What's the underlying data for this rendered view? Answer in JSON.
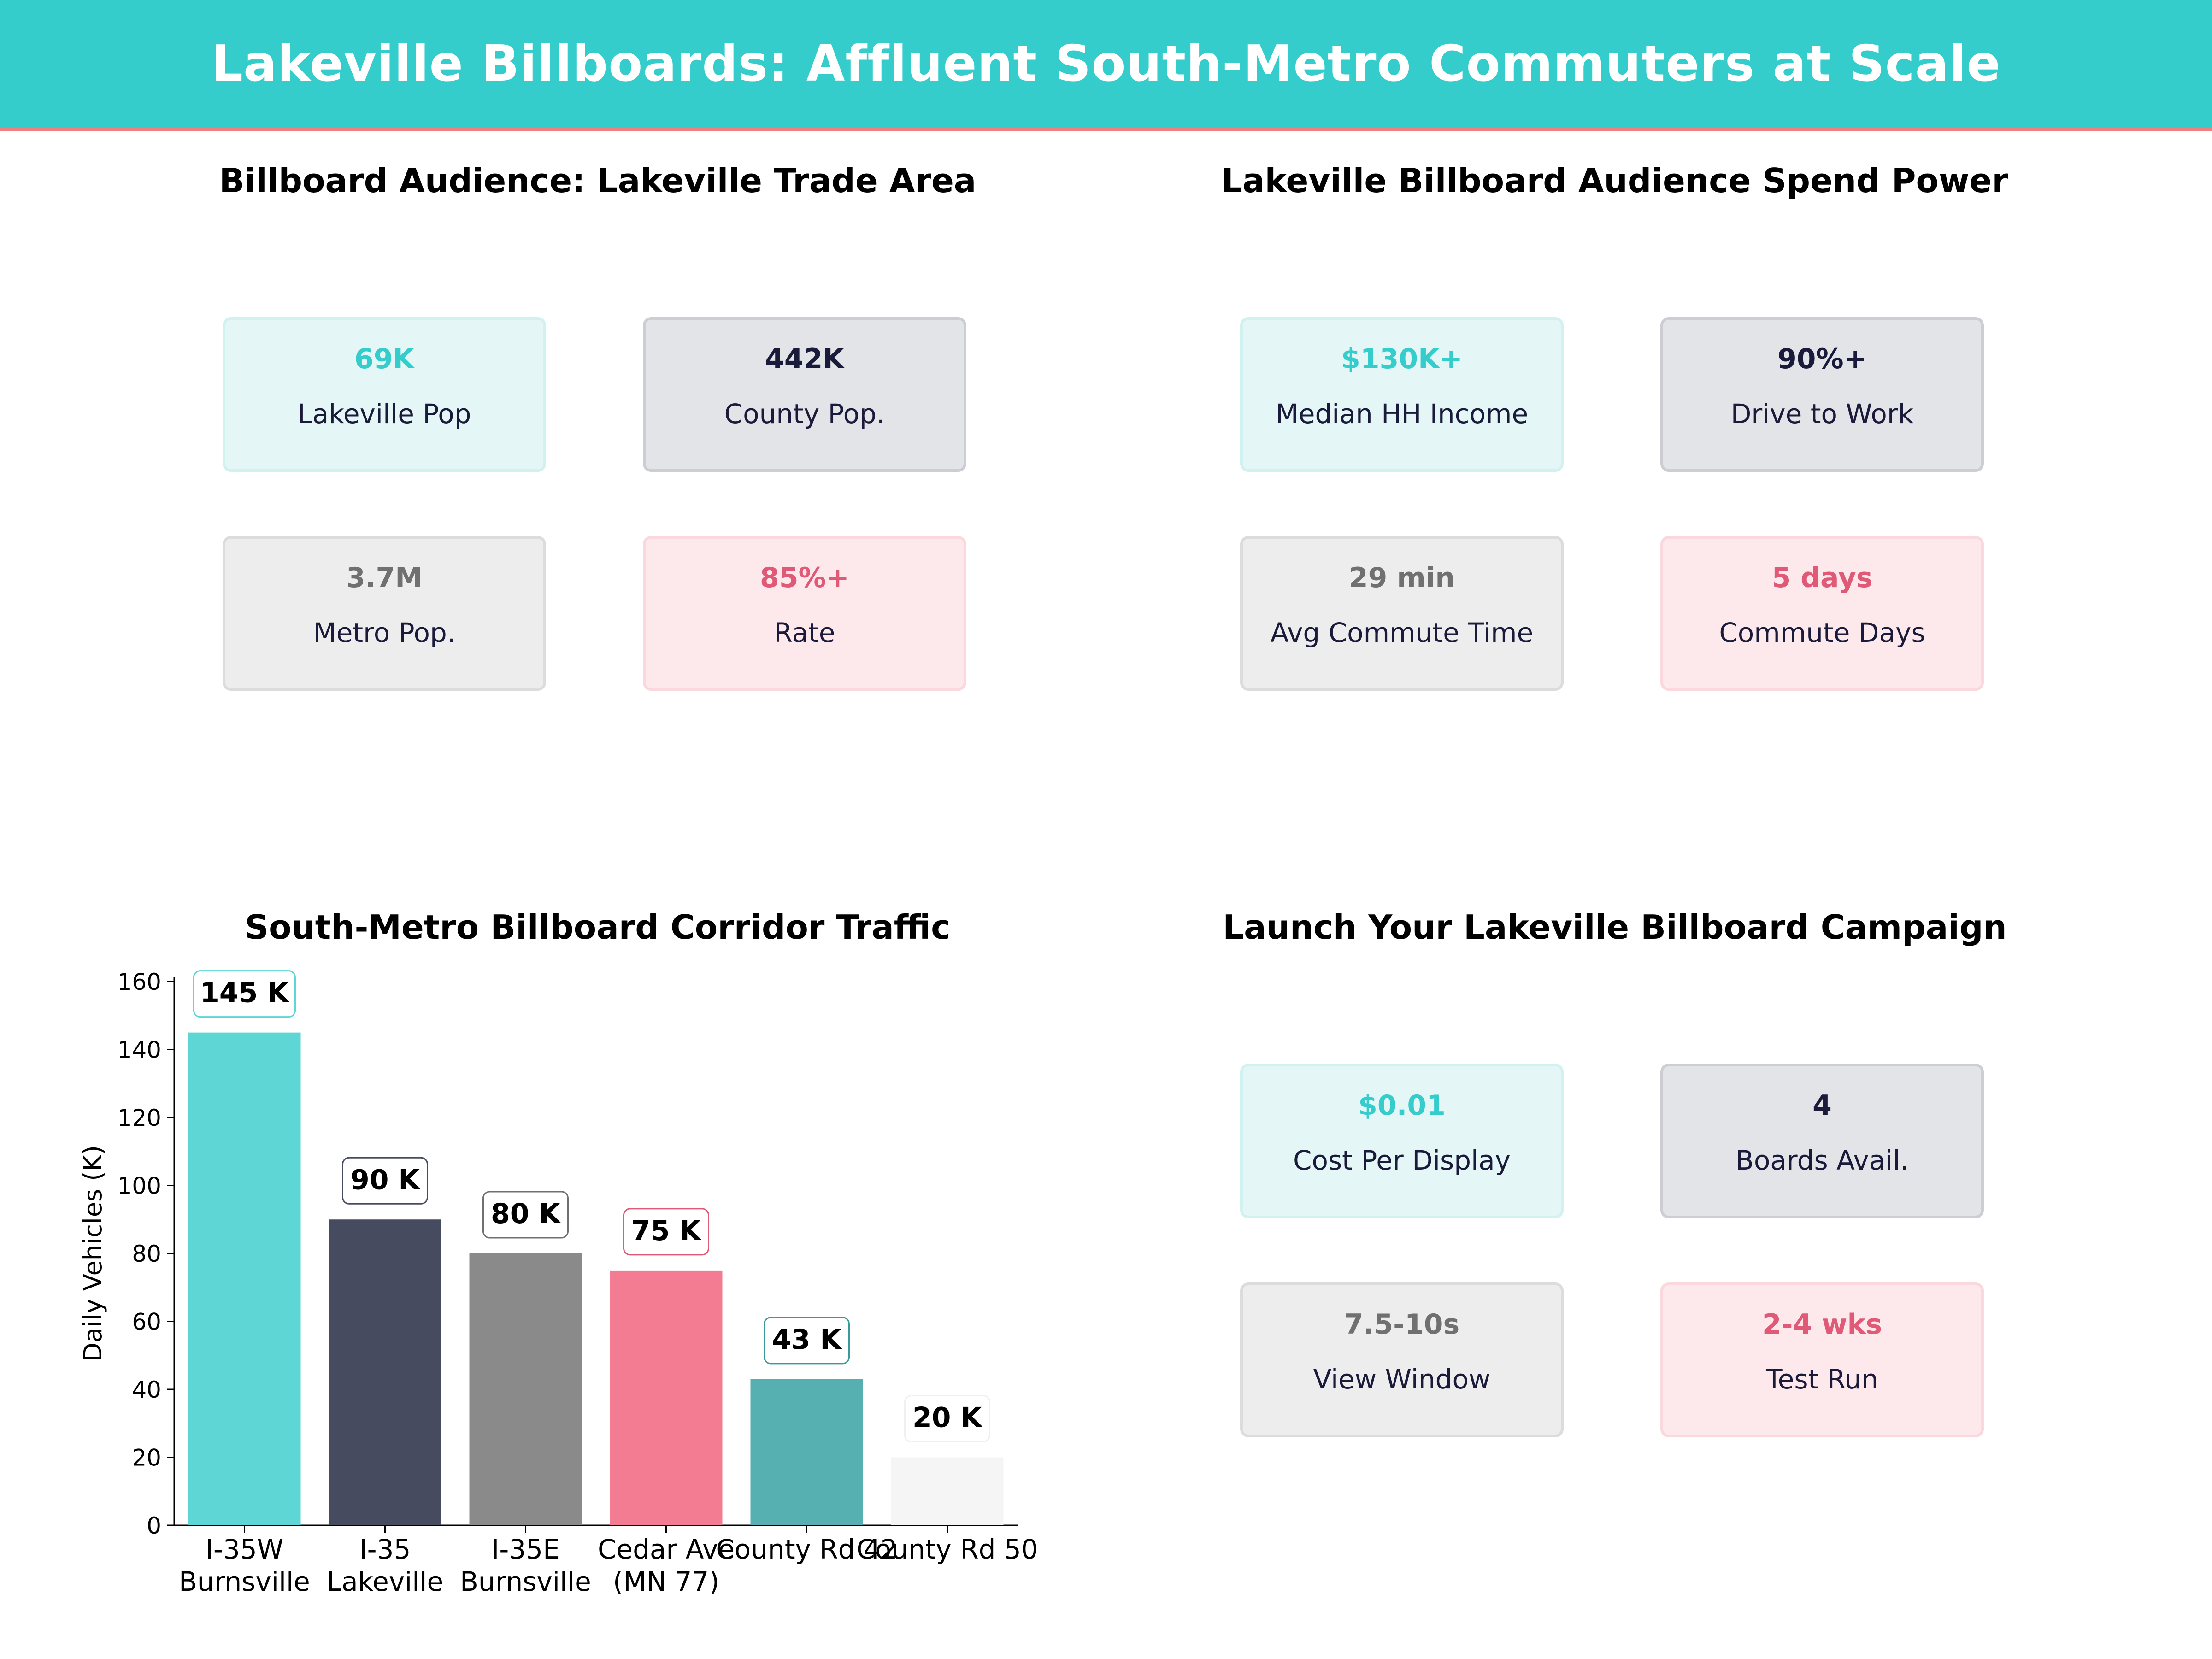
{
  "banner": {
    "title": "Lakeville Billboards: Affluent South-Metro Commuters at Scale"
  },
  "panels": [
    {
      "title": "Billboard Audience: Lakeville Trade Area",
      "cards": [
        {
          "value": "69K",
          "label": "Lakeville Pop",
          "style": "teal"
        },
        {
          "value": "442K",
          "label": "County Pop.",
          "style": "navy"
        },
        {
          "value": "3.7M",
          "label": "Metro Pop.",
          "style": "gray"
        },
        {
          "value": "85%+",
          "label": "Rate",
          "style": "pink"
        }
      ]
    },
    {
      "title": "Lakeville Billboard Audience Spend Power",
      "cards": [
        {
          "value": "$130K+",
          "label": "Median HH Income",
          "style": "teal"
        },
        {
          "value": "90%+",
          "label": "Drive to Work",
          "style": "navy"
        },
        {
          "value": "29 min",
          "label": "Avg Commute Time",
          "style": "gray"
        },
        {
          "value": "5 days",
          "label": "Commute Days",
          "style": "pink"
        }
      ]
    },
    {
      "title": "South-Metro Billboard Corridor Traffic"
    },
    {
      "title": "Launch Your Lakeville Billboard Campaign",
      "cards": [
        {
          "value": "$0.01",
          "label": "Cost Per Display",
          "style": "teal"
        },
        {
          "value": "4",
          "label": "Boards Avail.",
          "style": "navy"
        },
        {
          "value": "7.5-10s",
          "label": "View Window",
          "style": "gray"
        },
        {
          "value": "2-4 wks",
          "label": "Test Run",
          "style": "pink"
        }
      ]
    }
  ],
  "colors": {
    "banner": "#35CCCC",
    "banner_rule": "#F08080",
    "teal": "#35CCCC",
    "navy": "#1A1A3A",
    "gray": "#707070",
    "pink": "#E05A78"
  },
  "chart_data": {
    "type": "bar",
    "title": "South-Metro Billboard Corridor Traffic",
    "ylabel": "Daily Vehicles (K)",
    "xlabel": "",
    "ylim": [
      0,
      160
    ],
    "yticks": [
      0,
      20,
      40,
      60,
      80,
      100,
      120,
      140,
      160
    ],
    "grid": false,
    "categories": [
      [
        "I-35W",
        "Burnsville"
      ],
      [
        "I-35",
        "Lakeville"
      ],
      [
        "I-35E",
        "Burnsville"
      ],
      [
        "Cedar Ave",
        "(MN 77)"
      ],
      [
        "County Rd 42"
      ],
      [
        "County Rd 50"
      ]
    ],
    "values": [
      145,
      90,
      80,
      75,
      43,
      20
    ],
    "data_labels": [
      "145 K",
      "90 K",
      "80 K",
      "75 K",
      "43 K",
      "20 K"
    ],
    "bar_colors": [
      "#5DD6D5",
      "#464B60",
      "#8A8A8A",
      "#F47C92",
      "#56AFB0",
      "#F5F5F5"
    ],
    "label_border_colors": [
      "#5DD6D5",
      "#464B60",
      "#707070",
      "#E05A78",
      "#3A9A9A",
      "#F0F0F0"
    ]
  }
}
